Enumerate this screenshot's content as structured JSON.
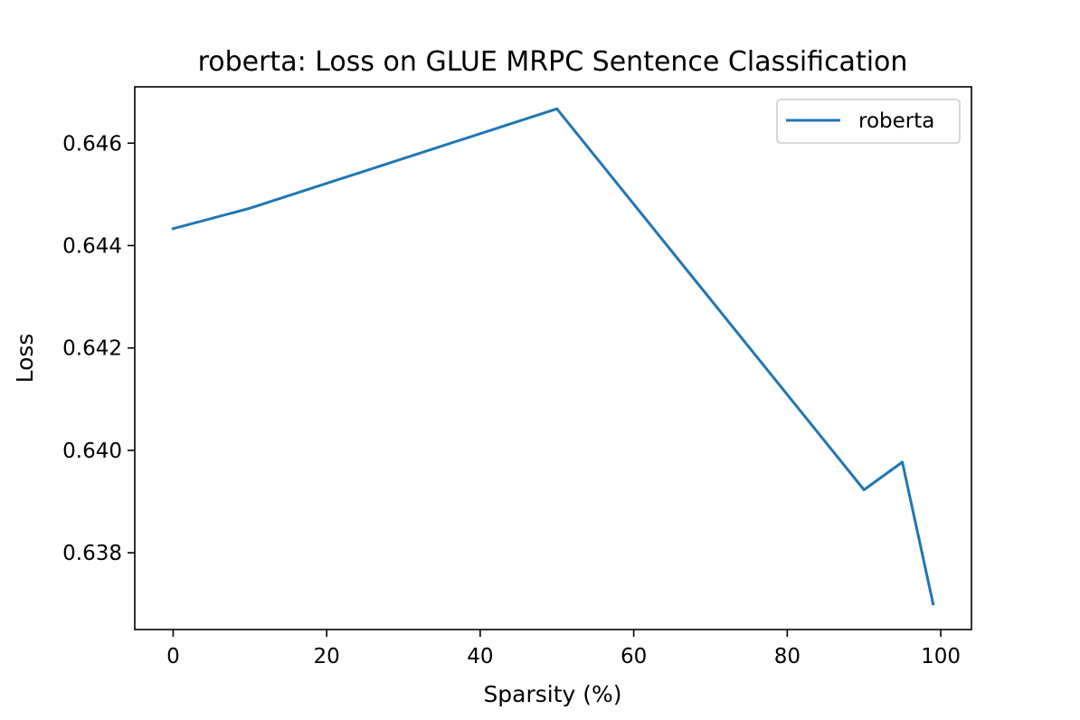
{
  "chart_data": {
    "type": "line",
    "title": "roberta: Loss on GLUE MRPC Sentence Classification",
    "xlabel": "Sparsity (%)",
    "ylabel": "Loss",
    "xlim": [
      -5,
      104
    ],
    "ylim": [
      0.6365,
      0.6471
    ],
    "xticks": [
      0,
      20,
      40,
      60,
      80,
      100
    ],
    "yticks": [
      0.638,
      0.64,
      0.642,
      0.644,
      0.646
    ],
    "xtick_labels": [
      "0",
      "20",
      "40",
      "60",
      "80",
      "100"
    ],
    "ytick_labels": [
      "0.638",
      "0.640",
      "0.642",
      "0.644",
      "0.646"
    ],
    "grid": false,
    "legend_position": "top-right",
    "series": [
      {
        "name": "roberta",
        "color": "#1f77b4",
        "x": [
          0,
          10,
          50,
          90,
          95,
          99
        ],
        "y": [
          0.64433,
          0.64473,
          0.64667,
          0.63923,
          0.63977,
          0.637
        ]
      }
    ]
  }
}
